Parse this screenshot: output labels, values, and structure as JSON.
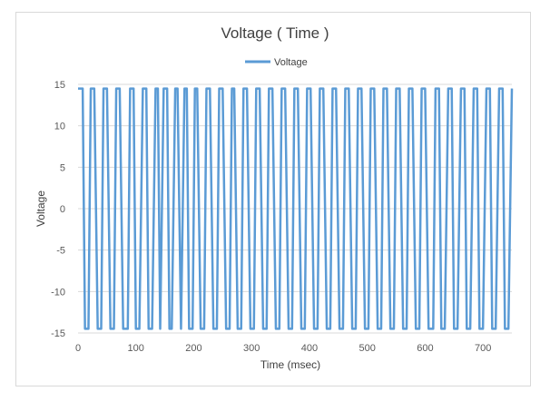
{
  "chart_data": {
    "type": "line",
    "title": "Voltage ( Time )",
    "xlabel": "Time (msec)",
    "ylabel": "Voltage",
    "xlim": [
      0,
      750
    ],
    "ylim": [
      -15,
      15
    ],
    "xticks": [
      0,
      100,
      200,
      300,
      400,
      500,
      600,
      700
    ],
    "yticks": [
      -15,
      -10,
      -5,
      0,
      5,
      10,
      15
    ],
    "grid": "horizontal",
    "legend": "top-center",
    "series": [
      {
        "name": "Voltage",
        "color": "#5b9bd5",
        "x": [
          0,
          8,
          12,
          18,
          22,
          28,
          34,
          40,
          44,
          50,
          56,
          62,
          66,
          72,
          78,
          86,
          90,
          96,
          100,
          106,
          112,
          118,
          122,
          128,
          134,
          138,
          142,
          148,
          154,
          158,
          162,
          168,
          172,
          178,
          184,
          188,
          192,
          198,
          202,
          206,
          212,
          218,
          222,
          228,
          234,
          240,
          244,
          250,
          256,
          262,
          266,
          270,
          276,
          282,
          286,
          292,
          298,
          304,
          308,
          314,
          320,
          326,
          330,
          336,
          342,
          348,
          352,
          358,
          364,
          370,
          374,
          380,
          386,
          392,
          396,
          402,
          408,
          414,
          418,
          424,
          430,
          436,
          440,
          446,
          452,
          458,
          462,
          468,
          474,
          480,
          484,
          490,
          496,
          502,
          506,
          512,
          518,
          524,
          528,
          534,
          540,
          546,
          550,
          556,
          562,
          568,
          572,
          578,
          584,
          590,
          594,
          600,
          606,
          614,
          618,
          624,
          628,
          634,
          640,
          646,
          650,
          656,
          662,
          668,
          672,
          678,
          684,
          690,
          694,
          700,
          706,
          712,
          716,
          722,
          728,
          734,
          738,
          744,
          750
        ],
        "values": [
          14.5,
          14.5,
          -14.5,
          -14.5,
          14.5,
          14.5,
          -14.5,
          -14.5,
          14.5,
          14.5,
          -14.5,
          -14.5,
          14.5,
          14.5,
          -14.5,
          -14.5,
          14.5,
          14.5,
          -14.5,
          -14.5,
          14.5,
          14.5,
          -14.5,
          -14.5,
          14.5,
          14.5,
          -14.5,
          14.5,
          14.5,
          -14.5,
          -14.5,
          14.5,
          14.5,
          -14.5,
          14.5,
          14.5,
          -14.5,
          -14.5,
          14.5,
          14.5,
          -14.5,
          -14.5,
          14.5,
          14.5,
          -14.5,
          -14.5,
          14.5,
          14.5,
          -14.5,
          -14.5,
          14.5,
          14.5,
          -14.5,
          -14.5,
          14.5,
          14.5,
          -14.5,
          -14.5,
          14.5,
          14.5,
          -14.5,
          -14.5,
          14.5,
          14.5,
          -14.5,
          -14.5,
          14.5,
          14.5,
          -14.5,
          -14.5,
          14.5,
          14.5,
          -14.5,
          -14.5,
          14.5,
          14.5,
          -14.5,
          -14.5,
          14.5,
          14.5,
          -14.5,
          -14.5,
          14.5,
          14.5,
          -14.5,
          -14.5,
          14.5,
          14.5,
          -14.5,
          -14.5,
          14.5,
          14.5,
          -14.5,
          -14.5,
          14.5,
          14.5,
          -14.5,
          -14.5,
          14.5,
          14.5,
          -14.5,
          -14.5,
          14.5,
          14.5,
          -14.5,
          -14.5,
          14.5,
          14.5,
          -14.5,
          -14.5,
          14.5,
          14.5,
          -14.5,
          -14.5,
          14.5,
          14.5,
          -14.5,
          -14.5,
          14.5,
          14.5,
          -14.5,
          -14.5,
          14.5,
          14.5,
          -14.5,
          -14.5,
          14.5,
          14.5,
          -14.5,
          -14.5,
          14.5,
          14.5,
          -14.5,
          -14.5,
          14.5,
          14.5,
          -14.5,
          -14.5,
          14.5
        ]
      }
    ]
  }
}
